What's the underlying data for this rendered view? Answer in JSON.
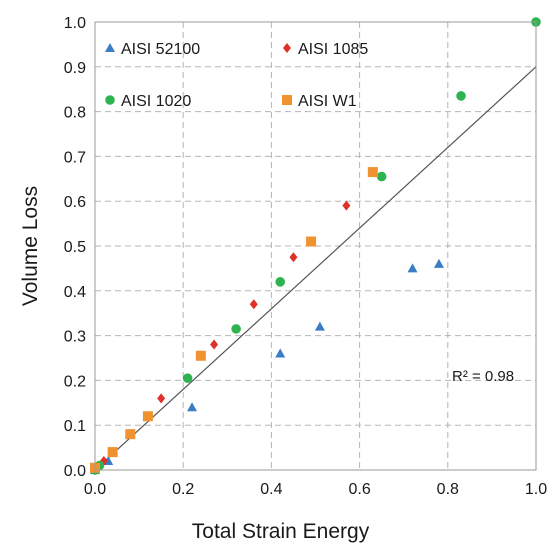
{
  "chart_data": {
    "type": "scatter",
    "xlabel": "Total Strain Energy",
    "ylabel": "Volume Loss",
    "xlim": [
      0,
      1.0
    ],
    "ylim": [
      0,
      1.0
    ],
    "x_ticks": [
      "0.0",
      "0.2",
      "0.4",
      "0.6",
      "0.8",
      "1.0"
    ],
    "y_ticks": [
      "0.0",
      "0.1",
      "0.2",
      "0.3",
      "0.4",
      "0.5",
      "0.6",
      "0.7",
      "0.8",
      "0.9",
      "1.0"
    ],
    "grid": "dashed",
    "legend_placement": "top-left",
    "series": [
      {
        "name": "AISI 52100",
        "marker": "triangle",
        "color": "#3a7dc4",
        "points": [
          [
            0.0,
            0.0
          ],
          [
            0.03,
            0.02
          ],
          [
            0.22,
            0.14
          ],
          [
            0.42,
            0.26
          ],
          [
            0.51,
            0.32
          ],
          [
            0.72,
            0.45
          ],
          [
            0.78,
            0.46
          ]
        ]
      },
      {
        "name": "AISI 1085",
        "marker": "diamond",
        "color": "#e0302a",
        "points": [
          [
            0.0,
            0.0
          ],
          [
            0.02,
            0.02
          ],
          [
            0.08,
            0.08
          ],
          [
            0.15,
            0.16
          ],
          [
            0.27,
            0.28
          ],
          [
            0.36,
            0.37
          ],
          [
            0.45,
            0.475
          ],
          [
            0.57,
            0.59
          ]
        ]
      },
      {
        "name": "AISI 1020",
        "marker": "circle",
        "color": "#2fb350",
        "points": [
          [
            0.0,
            0.0
          ],
          [
            0.01,
            0.01
          ],
          [
            0.04,
            0.04
          ],
          [
            0.08,
            0.08
          ],
          [
            0.21,
            0.205
          ],
          [
            0.32,
            0.315
          ],
          [
            0.42,
            0.42
          ],
          [
            0.65,
            0.655
          ],
          [
            0.83,
            0.835
          ],
          [
            1.0,
            1.0
          ]
        ]
      },
      {
        "name": "AISI W1",
        "marker": "square",
        "color": "#f0922f",
        "points": [
          [
            0.0,
            0.005
          ],
          [
            0.04,
            0.04
          ],
          [
            0.08,
            0.08
          ],
          [
            0.12,
            0.12
          ],
          [
            0.24,
            0.255
          ],
          [
            0.49,
            0.51
          ],
          [
            0.63,
            0.665
          ]
        ]
      }
    ],
    "fit_line": {
      "x": [
        0.0,
        1.0
      ],
      "y": [
        0.0,
        0.9
      ],
      "color": "#555555"
    },
    "annotation": "R² = 0.98"
  }
}
